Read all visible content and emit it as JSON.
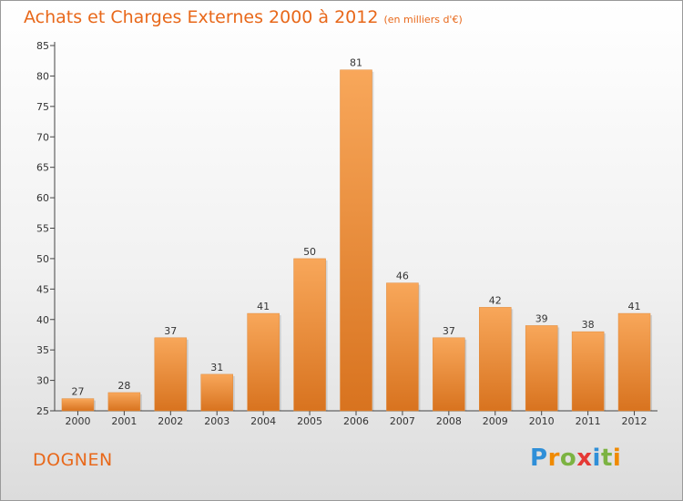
{
  "title": "Achats et Charges Externes 2000 à 2012",
  "subtitle": "(en milliers d'€)",
  "commune": "DOGNEN",
  "logo": {
    "text": "Proxiti",
    "letters": [
      {
        "ch": "P",
        "color": "#2f8fd8"
      },
      {
        "ch": "r",
        "color": "#f08a00"
      },
      {
        "ch": "o",
        "color": "#7cb342"
      },
      {
        "ch": "x",
        "color": "#e53935"
      },
      {
        "ch": "i",
        "color": "#2f8fd8"
      },
      {
        "ch": "t",
        "color": "#7cb342"
      },
      {
        "ch": "i",
        "color": "#f08a00"
      }
    ]
  },
  "colors": {
    "accent": "#e8681a",
    "bar_top": "#f8a75a",
    "bar_bottom": "#d8731f"
  },
  "chart_data": {
    "type": "bar",
    "title": "Achats et Charges Externes 2000 à 2012",
    "subtitle": "(en milliers d'€)",
    "categories": [
      "2000",
      "2001",
      "2002",
      "2003",
      "2004",
      "2005",
      "2006",
      "2007",
      "2008",
      "2009",
      "2010",
      "2011",
      "2012"
    ],
    "values": [
      27,
      28,
      37,
      31,
      41,
      50,
      81,
      46,
      37,
      42,
      39,
      38,
      41
    ],
    "ylim": [
      25,
      85
    ],
    "yticks": [
      25,
      30,
      35,
      40,
      45,
      50,
      55,
      60,
      65,
      70,
      75,
      80,
      85
    ],
    "grid": false,
    "legend": "none"
  }
}
